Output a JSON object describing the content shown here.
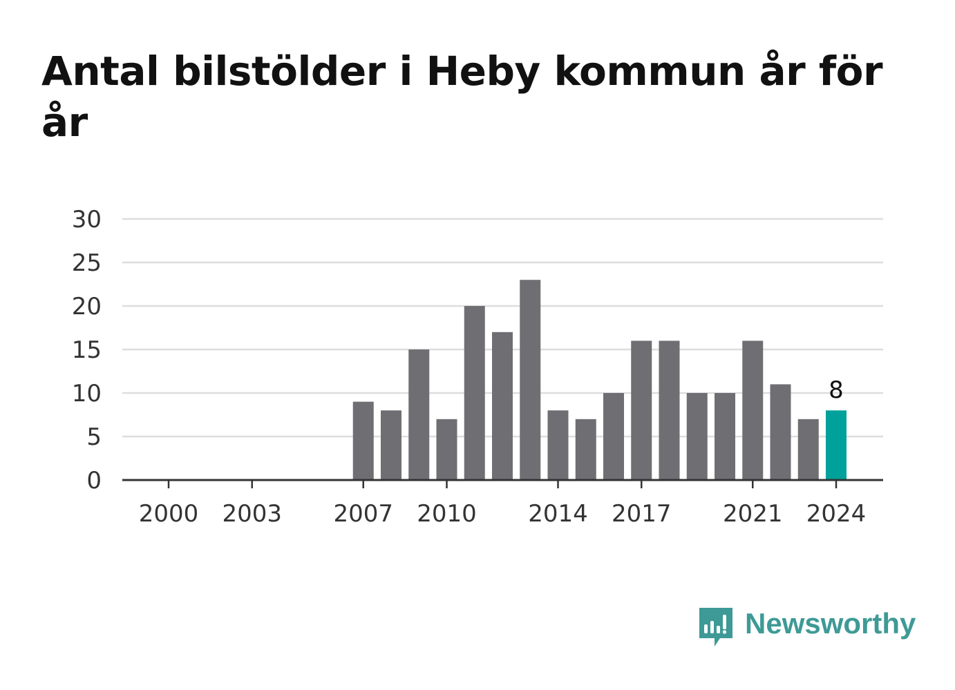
{
  "title": "Antal bilstölder i Heby kommun år för år",
  "brand": {
    "name": "Newsworthy",
    "color": "#3e9a96"
  },
  "colors": {
    "bar": "#6f6e73",
    "highlight": "#00a19a",
    "grid": "#dddddd",
    "axis": "#333333",
    "tick_text": "#333333"
  },
  "chart_data": {
    "type": "bar",
    "title": "Antal bilstölder i Heby kommun år för år",
    "x": [
      2000,
      2001,
      2002,
      2003,
      2004,
      2005,
      2006,
      2007,
      2008,
      2009,
      2010,
      2011,
      2012,
      2013,
      2014,
      2015,
      2016,
      2017,
      2018,
      2019,
      2020,
      2021,
      2022,
      2023,
      2024
    ],
    "values": [
      0,
      0,
      0,
      0,
      0,
      0,
      0,
      9,
      8,
      15,
      7,
      20,
      17,
      23,
      8,
      7,
      10,
      16,
      16,
      10,
      10,
      16,
      11,
      7,
      8
    ],
    "x_ticks": [
      "2000",
      "2003",
      "2007",
      "2010",
      "2014",
      "2017",
      "2021",
      "2024"
    ],
    "y_ticks": [
      0,
      5,
      10,
      15,
      20,
      25,
      30
    ],
    "ylim": [
      0,
      30
    ],
    "highlight": {
      "category": 2024,
      "label": "8"
    },
    "grid": true,
    "legend": "none",
    "xlabel": "",
    "ylabel": ""
  }
}
